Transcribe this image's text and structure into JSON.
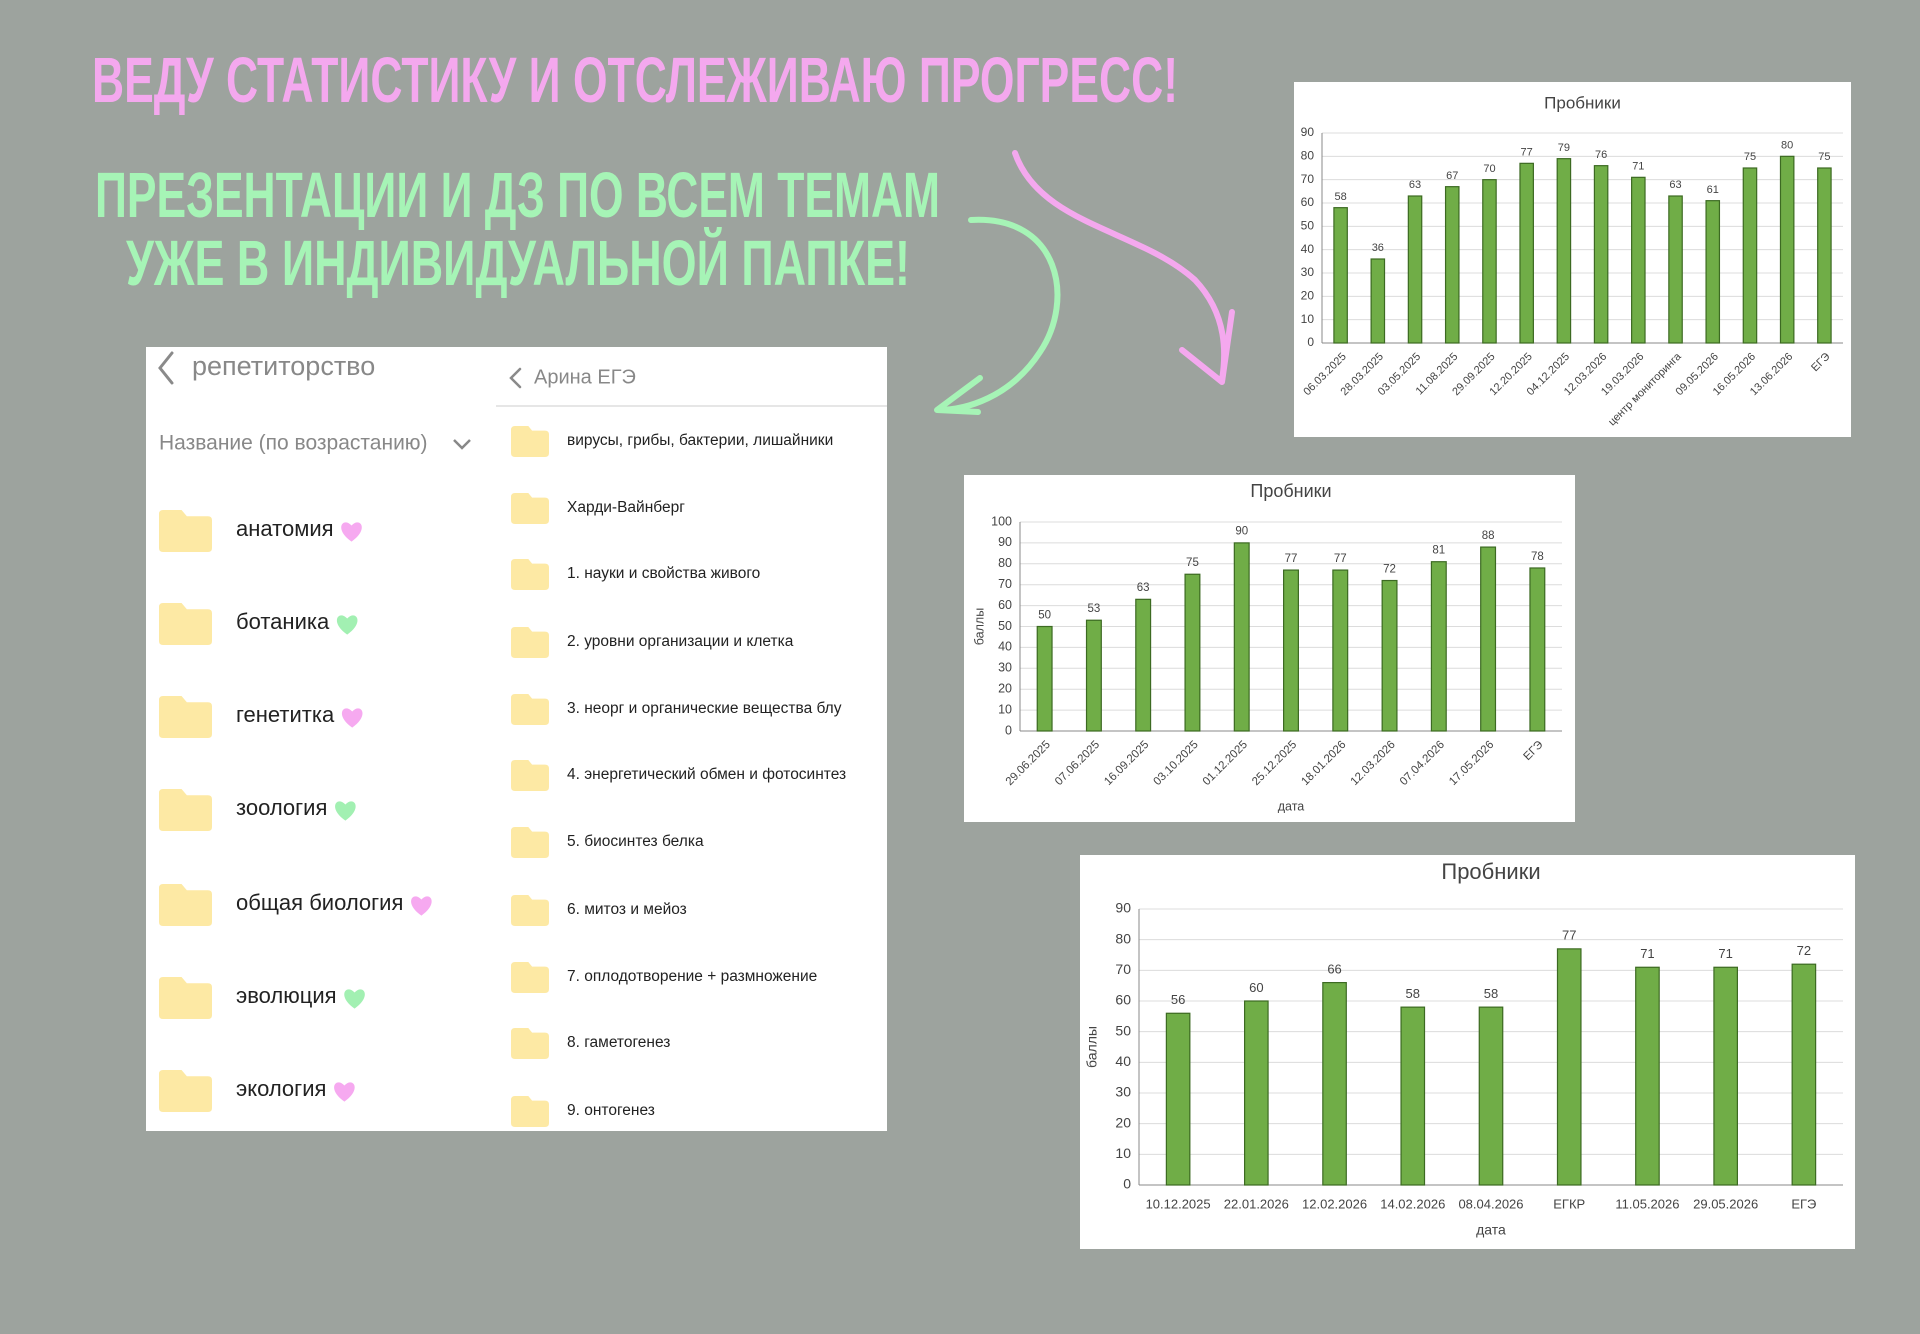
{
  "header": {
    "title": "ВЕДУ СТАТИСТИКУ И ОТСЛЕЖИВАЮ ПРОГРЕСС!",
    "subtitle": [
      "ПРЕЗЕНТАЦИИ И ДЗ ПО ВСЕМ ТЕМАМ",
      "УЖЕ В ИНДИВИДУАЛЬНОЙ ПАПКЕ!"
    ]
  },
  "file_browser": {
    "back_title": "репетиторство",
    "sort_label": "Название (по возрастанию)",
    "folders": [
      "анатомия",
      "ботаника",
      "генетитка",
      "зоология",
      "общая биология",
      "эволюция",
      "экология"
    ],
    "subfolder": {
      "back_title": "Арина ЕГЭ",
      "folders": [
        "вирусы, грибы, бактерии, лишайники",
        "Харди-Вайнберг",
        "1. науки и свойства живого",
        "2. уровни организации и клетка",
        "3. неорг и органические вещества блу",
        "4. энергетический обмен и фотосинтез",
        "5. биосинтез белка",
        "6. митоз и мейоз",
        "7. оплодотворение + размножение",
        "8. гаметогенез",
        "9. онтогенез"
      ]
    }
  },
  "chart_data": [
    {
      "type": "bar",
      "title": "Пробники",
      "categories": [
        "06.03.2025",
        "28.03.2025",
        "03.05.2025",
        "11.08.2025",
        "29.09.2025",
        "12.20.2025",
        "04.12.2025",
        "12.03.2026",
        "19.03.2026",
        "центр мониторинга",
        "09.05.2026",
        "16.05.2026",
        "13.06.2026",
        "ЕГЭ"
      ],
      "values": [
        58,
        36,
        63,
        67,
        70,
        77,
        79,
        76,
        71,
        63,
        61,
        75,
        80,
        75
      ],
      "color": "#70ad47",
      "ylim": [
        0,
        90
      ],
      "yticks": [
        0,
        10,
        20,
        30,
        40,
        50,
        60,
        70,
        80,
        90
      ],
      "grid": true
    },
    {
      "type": "bar",
      "title": "Пробники",
      "y_label": "баллы",
      "x_label": "дата",
      "categories": [
        "29.06.2025",
        "07.06.2025",
        "16.09.2025",
        "03.10.2025",
        "01.12.2025",
        "25.12.2025",
        "18.01.2026",
        "12.03.2026",
        "07.04.2026",
        "17.05.2026",
        "ЕГЭ"
      ],
      "values": [
        50,
        53,
        63,
        75,
        90,
        77,
        77,
        72,
        81,
        88,
        78
      ],
      "color": "#70ad47",
      "ylim": [
        0,
        100
      ],
      "yticks": [
        0,
        10,
        20,
        30,
        40,
        50,
        60,
        70,
        80,
        90,
        100
      ],
      "grid": true
    },
    {
      "type": "bar",
      "title": "Пробники",
      "y_label": "баллы",
      "x_label": "дата",
      "categories": [
        "10.12.2025",
        "22.01.2026",
        "12.02.2026",
        "14.02.2026",
        "08.04.2026",
        "ЕГКР",
        "11.05.2026",
        "29.05.2026",
        "ЕГЭ"
      ],
      "values": [
        56,
        60,
        66,
        58,
        58,
        77,
        71,
        71,
        72
      ],
      "color": "#70ad47",
      "ylim": [
        0,
        90
      ],
      "yticks": [
        0,
        10,
        20,
        30,
        40,
        50,
        60,
        70,
        80,
        90
      ],
      "grid": true
    }
  ]
}
